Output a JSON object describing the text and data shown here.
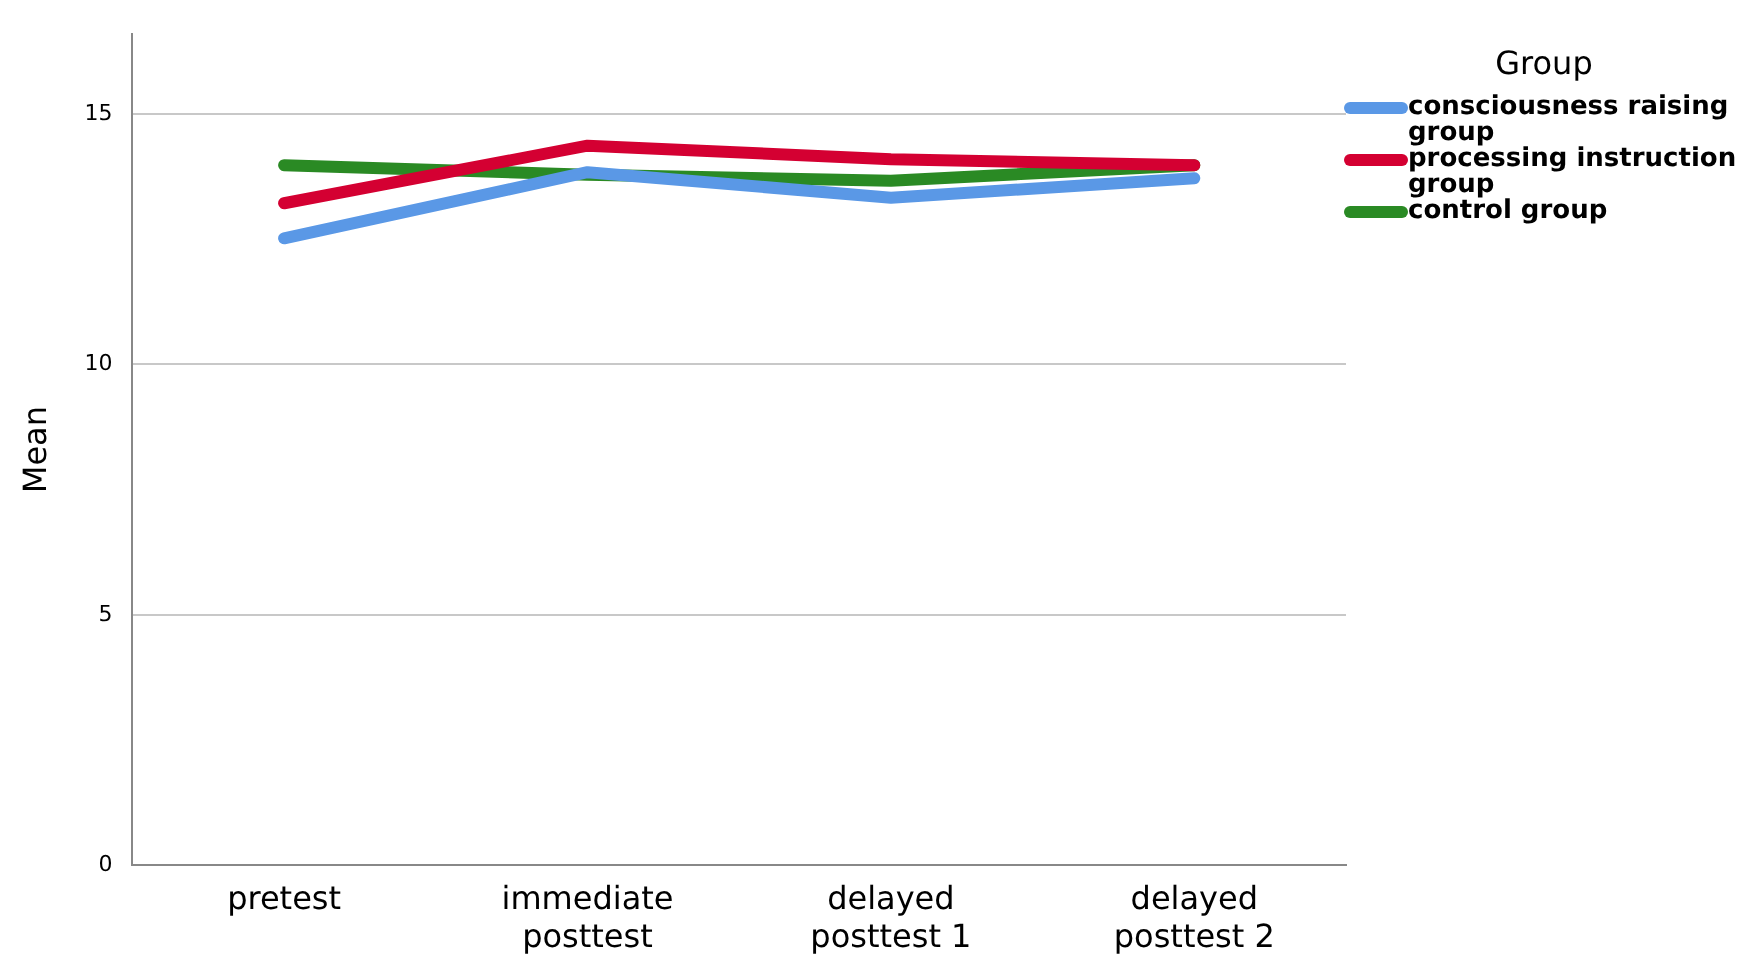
{
  "chart_data": {
    "type": "line",
    "ylabel": "Mean",
    "legend_title": "Group",
    "legend": "top right",
    "grid": "y",
    "marker": "none",
    "line_style": "solid",
    "categories": [
      "pretest",
      "immediate posttest",
      "delayed posttest 1",
      "delayed posttest 2"
    ],
    "ylim": [
      0,
      16.6
    ],
    "yticks": [
      0,
      5,
      10,
      15
    ],
    "series": [
      {
        "name": "consciousness raising group",
        "color": "#5a98e6",
        "values": [
          12.52,
          13.84,
          13.33,
          13.72
        ]
      },
      {
        "name": "processing instruction group",
        "color": "#d40032",
        "values": [
          13.22,
          14.37,
          14.1,
          13.98
        ]
      },
      {
        "name": "control group",
        "color": "#2a8a24",
        "values": [
          13.98,
          13.79,
          13.67,
          13.98
        ]
      }
    ]
  }
}
